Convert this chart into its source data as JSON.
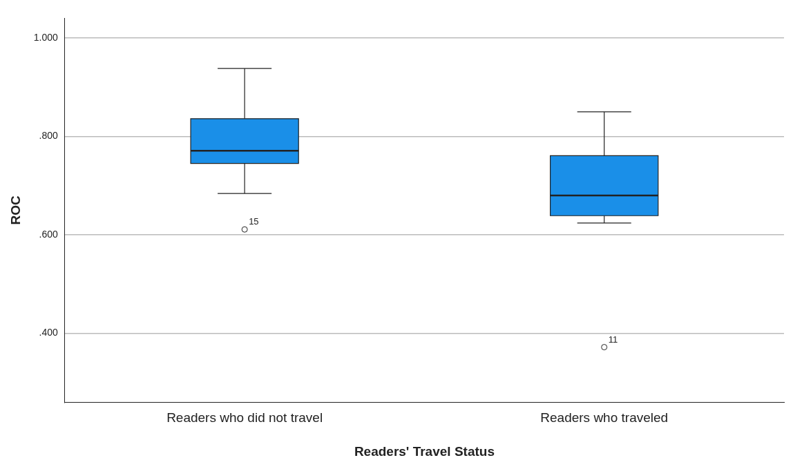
{
  "chart_data": {
    "type": "box",
    "xlabel": "Readers' Travel Status",
    "ylabel": "ROC",
    "categories": [
      "Readers who did not travel",
      "Readers who traveled"
    ],
    "boxes": [
      {
        "low": 0.684,
        "q1": 0.745,
        "median": 0.771,
        "q3": 0.836,
        "high": 0.938,
        "outliers": [
          0.611
        ]
      },
      {
        "low": 0.624,
        "q1": 0.639,
        "median": 0.68,
        "q3": 0.761,
        "high": 0.85,
        "outliers": [
          0.372
        ]
      }
    ],
    "color": "#1a8fe8",
    "ylim": [
      0.26,
      1.04
    ],
    "yticks": [
      {
        "value": 0.4,
        "label": ".400"
      },
      {
        "value": 0.6,
        "label": ".600"
      },
      {
        "value": 0.8,
        "label": ".800"
      },
      {
        "value": 1,
        "label": "1.000"
      }
    ],
    "grid": "y",
    "marker": "circle",
    "legend": false,
    "annotations": [
      "15",
      "11"
    ]
  }
}
